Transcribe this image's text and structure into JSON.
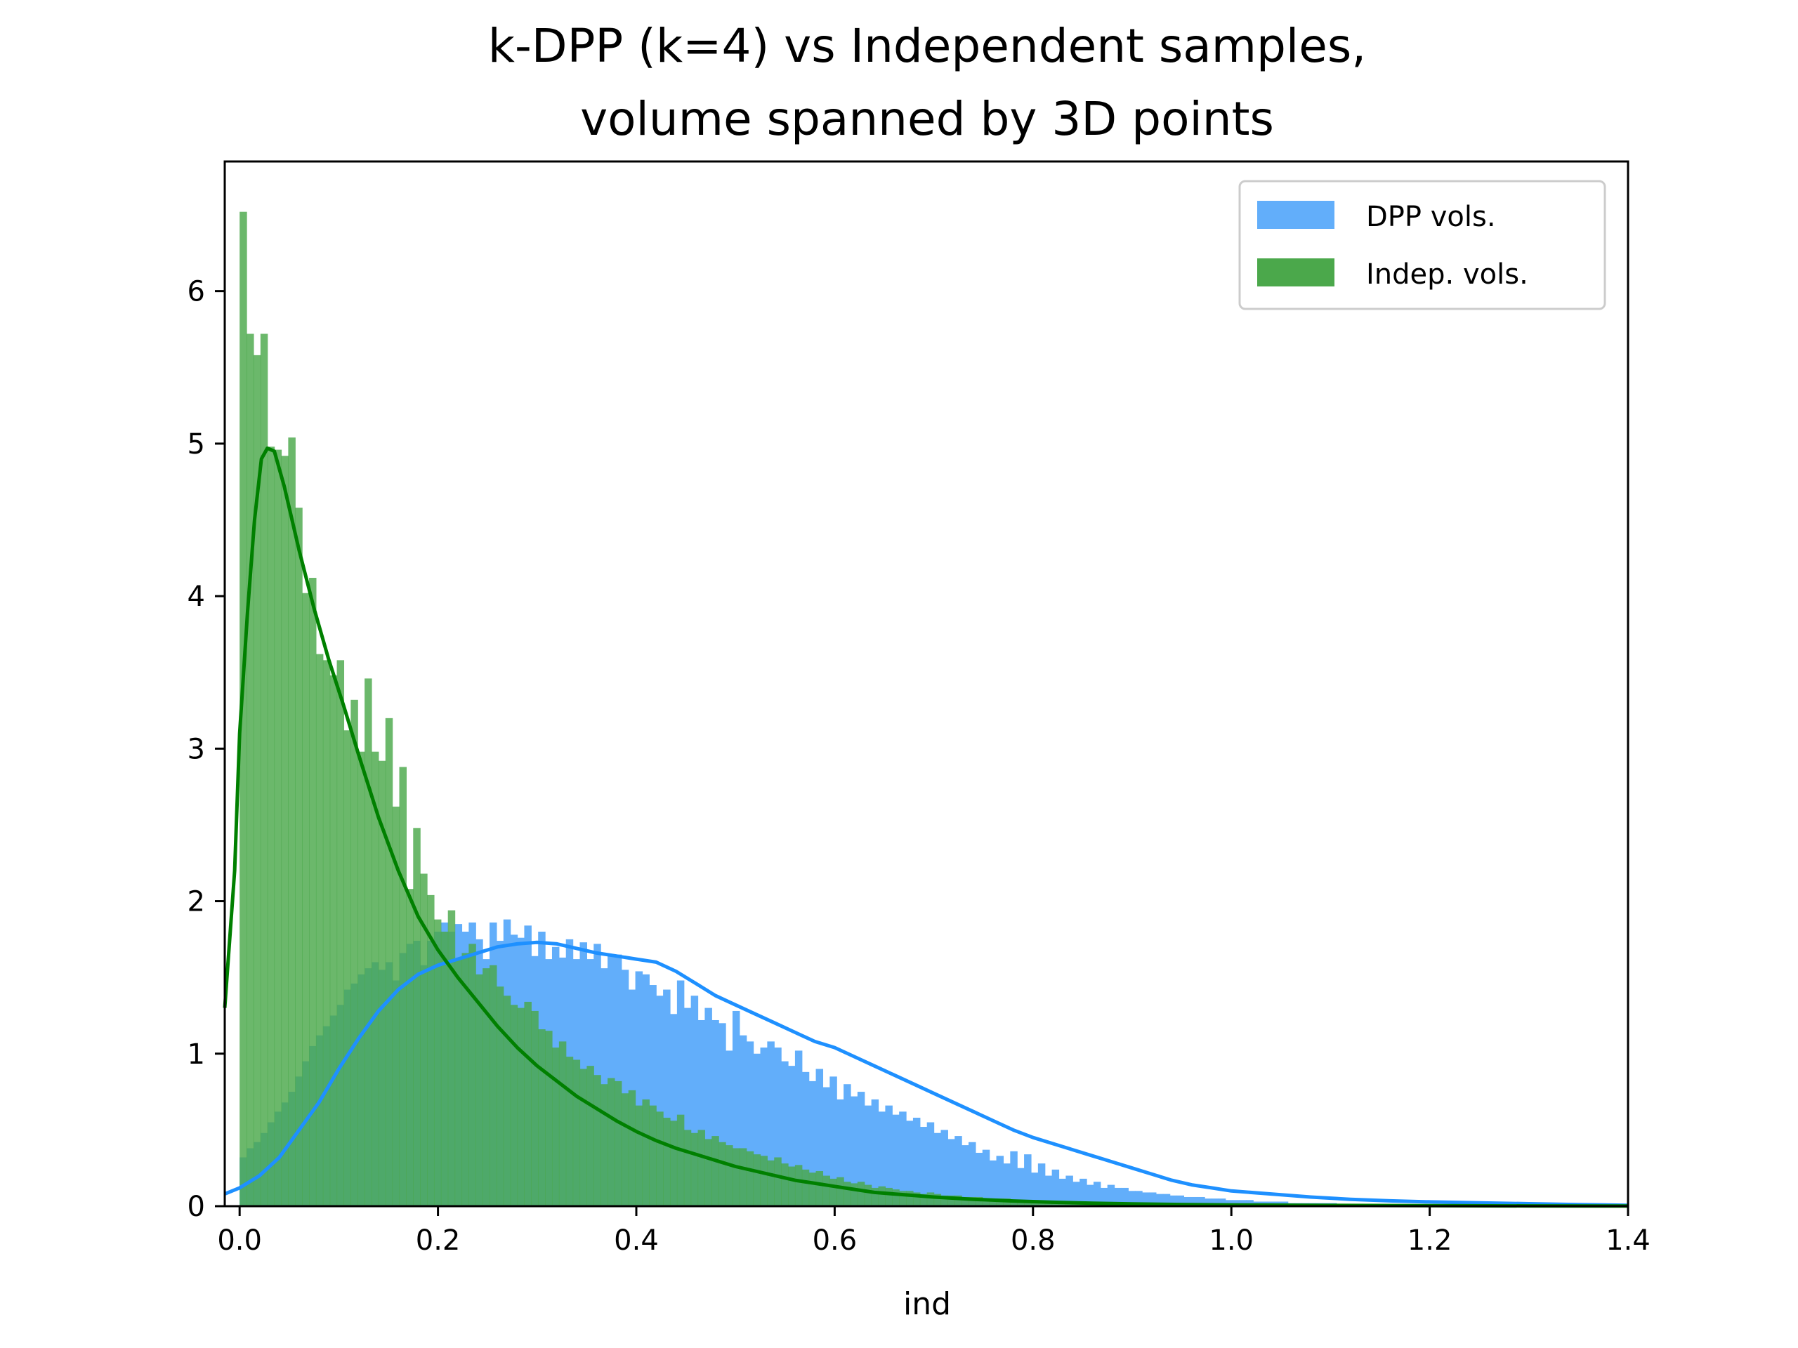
{
  "chart_data": {
    "type": "bar",
    "title_lines": [
      "k-DPP (k=4) vs Independent samples,",
      "volume spanned by 3D points"
    ],
    "xlabel": "ind",
    "ylabel": "",
    "xlim": [
      -0.015,
      1.4
    ],
    "ylim": [
      0,
      6.85
    ],
    "x_ticks": [
      {
        "value": 0.0,
        "label": "0.0"
      },
      {
        "value": 0.2,
        "label": "0.2"
      },
      {
        "value": 0.4,
        "label": "0.4"
      },
      {
        "value": 0.6,
        "label": "0.6"
      },
      {
        "value": 0.8,
        "label": "0.8"
      },
      {
        "value": 1.0,
        "label": "1.0"
      },
      {
        "value": 1.2,
        "label": "1.2"
      },
      {
        "value": 1.4,
        "label": "1.4"
      }
    ],
    "y_ticks": [
      {
        "value": 0,
        "label": "0"
      },
      {
        "value": 1,
        "label": "1"
      },
      {
        "value": 2,
        "label": "2"
      },
      {
        "value": 3,
        "label": "3"
      },
      {
        "value": 4,
        "label": "4"
      },
      {
        "value": 5,
        "label": "5"
      },
      {
        "value": 6,
        "label": "6"
      }
    ],
    "grid": false,
    "legend_position": "upper-right",
    "series": [
      {
        "name": "DPP vols.",
        "kind": "histogram",
        "color": "#1e90ff",
        "fill_color": "#62aefa",
        "bin_width": 0.007,
        "bin_start": 0.0,
        "counts": [
          0.32,
          0.38,
          0.42,
          0.48,
          0.55,
          0.62,
          0.68,
          0.75,
          0.85,
          0.95,
          1.05,
          1.12,
          1.18,
          1.25,
          1.32,
          1.42,
          1.46,
          1.52,
          1.56,
          1.6,
          1.55,
          1.6,
          1.48,
          1.66,
          1.72,
          1.74,
          1.58,
          1.74,
          1.8,
          1.86,
          1.8,
          1.85,
          1.8,
          1.86,
          1.75,
          1.62,
          1.86,
          1.74,
          1.88,
          1.78,
          1.76,
          1.84,
          1.64,
          1.8,
          1.62,
          1.7,
          1.63,
          1.75,
          1.62,
          1.73,
          1.62,
          1.72,
          1.56,
          1.64,
          1.65,
          1.55,
          1.42,
          1.54,
          1.52,
          1.45,
          1.38,
          1.42,
          1.26,
          1.48,
          1.3,
          1.38,
          1.22,
          1.3,
          1.22,
          1.2,
          1.02,
          1.28,
          1.12,
          1.08,
          1.0,
          1.04,
          1.08,
          1.04,
          0.95,
          0.92,
          1.02,
          0.88,
          0.82,
          0.9,
          0.78,
          0.85,
          0.7,
          0.8,
          0.72,
          0.75,
          0.66,
          0.7,
          0.62,
          0.66,
          0.6,
          0.62,
          0.56,
          0.58,
          0.52,
          0.55,
          0.48,
          0.5,
          0.44,
          0.46,
          0.4,
          0.42,
          0.35,
          0.37,
          0.3,
          0.33,
          0.28,
          0.36,
          0.25,
          0.34,
          0.22,
          0.28,
          0.2,
          0.24,
          0.18,
          0.2,
          0.16,
          0.18,
          0.14,
          0.16,
          0.12,
          0.14,
          0.12,
          0.12,
          0.1,
          0.1,
          0.09,
          0.09,
          0.08,
          0.08,
          0.07,
          0.07,
          0.06,
          0.06,
          0.06,
          0.05,
          0.05,
          0.05,
          0.04,
          0.04,
          0.04,
          0.04,
          0.03,
          0.03,
          0.03,
          0.03,
          0.03,
          0.02,
          0.02,
          0.02,
          0.02,
          0.02,
          0.02,
          0.02,
          0.01,
          0.01,
          0.01,
          0.01,
          0.01,
          0.01,
          0.01,
          0.01,
          0.01,
          0.01,
          0.01,
          0.01,
          0.01,
          0.01,
          0.01,
          0.01,
          0.01,
          0.01,
          0.01,
          0.01,
          0.01,
          0.01,
          0.01,
          0.01,
          0.01,
          0.01,
          0.01,
          0.01,
          0.01,
          0.01,
          0.01,
          0.01,
          0.01,
          0.01,
          0.01,
          0.01,
          0.01,
          0.01,
          0.01,
          0.01
        ],
        "kde": [
          [
            -0.015,
            0.08
          ],
          [
            0.0,
            0.12
          ],
          [
            0.02,
            0.2
          ],
          [
            0.04,
            0.32
          ],
          [
            0.06,
            0.5
          ],
          [
            0.08,
            0.68
          ],
          [
            0.1,
            0.9
          ],
          [
            0.12,
            1.1
          ],
          [
            0.14,
            1.28
          ],
          [
            0.16,
            1.42
          ],
          [
            0.18,
            1.52
          ],
          [
            0.2,
            1.58
          ],
          [
            0.22,
            1.62
          ],
          [
            0.24,
            1.66
          ],
          [
            0.26,
            1.7
          ],
          [
            0.28,
            1.72
          ],
          [
            0.3,
            1.73
          ],
          [
            0.32,
            1.72
          ],
          [
            0.34,
            1.69
          ],
          [
            0.36,
            1.66
          ],
          [
            0.38,
            1.64
          ],
          [
            0.4,
            1.62
          ],
          [
            0.42,
            1.6
          ],
          [
            0.44,
            1.54
          ],
          [
            0.46,
            1.46
          ],
          [
            0.48,
            1.38
          ],
          [
            0.5,
            1.32
          ],
          [
            0.52,
            1.26
          ],
          [
            0.54,
            1.2
          ],
          [
            0.56,
            1.14
          ],
          [
            0.58,
            1.08
          ],
          [
            0.6,
            1.04
          ],
          [
            0.62,
            0.98
          ],
          [
            0.64,
            0.92
          ],
          [
            0.66,
            0.86
          ],
          [
            0.68,
            0.8
          ],
          [
            0.7,
            0.74
          ],
          [
            0.72,
            0.68
          ],
          [
            0.74,
            0.62
          ],
          [
            0.76,
            0.56
          ],
          [
            0.78,
            0.5
          ],
          [
            0.8,
            0.45
          ],
          [
            0.82,
            0.41
          ],
          [
            0.84,
            0.37
          ],
          [
            0.86,
            0.33
          ],
          [
            0.88,
            0.29
          ],
          [
            0.9,
            0.25
          ],
          [
            0.92,
            0.21
          ],
          [
            0.94,
            0.17
          ],
          [
            0.96,
            0.14
          ],
          [
            0.98,
            0.12
          ],
          [
            1.0,
            0.1
          ],
          [
            1.04,
            0.08
          ],
          [
            1.08,
            0.06
          ],
          [
            1.12,
            0.045
          ],
          [
            1.16,
            0.035
          ],
          [
            1.2,
            0.028
          ],
          [
            1.25,
            0.022
          ],
          [
            1.3,
            0.016
          ],
          [
            1.35,
            0.01
          ],
          [
            1.4,
            0.006
          ]
        ]
      },
      {
        "name": "Indep. vols.",
        "kind": "histogram",
        "color": "#008000",
        "fill_color": "#4ba84b",
        "bin_width": 0.007,
        "bin_start": 0.0,
        "counts": [
          6.52,
          5.72,
          5.58,
          5.72,
          4.98,
          4.96,
          4.92,
          5.04,
          4.58,
          4.02,
          4.12,
          3.62,
          3.58,
          3.48,
          3.58,
          3.12,
          3.32,
          2.98,
          3.46,
          2.98,
          2.92,
          3.2,
          2.62,
          2.88,
          2.08,
          2.48,
          2.18,
          2.04,
          1.88,
          1.8,
          1.94,
          1.62,
          1.66,
          1.72,
          1.52,
          1.56,
          1.58,
          1.44,
          1.38,
          1.32,
          1.3,
          1.34,
          1.28,
          1.16,
          1.15,
          1.04,
          1.08,
          0.98,
          0.96,
          0.9,
          0.92,
          0.86,
          0.8,
          0.84,
          0.82,
          0.74,
          0.76,
          0.66,
          0.7,
          0.66,
          0.62,
          0.58,
          0.56,
          0.6,
          0.5,
          0.48,
          0.5,
          0.44,
          0.46,
          0.42,
          0.4,
          0.38,
          0.38,
          0.36,
          0.34,
          0.33,
          0.3,
          0.32,
          0.28,
          0.26,
          0.27,
          0.24,
          0.22,
          0.23,
          0.2,
          0.18,
          0.19,
          0.16,
          0.15,
          0.16,
          0.14,
          0.12,
          0.13,
          0.12,
          0.11,
          0.1,
          0.1,
          0.09,
          0.08,
          0.09,
          0.08,
          0.07,
          0.07,
          0.07,
          0.06,
          0.06,
          0.06,
          0.05,
          0.05,
          0.05,
          0.05,
          0.04,
          0.04,
          0.04,
          0.04,
          0.03,
          0.03,
          0.03,
          0.03,
          0.03,
          0.03,
          0.02,
          0.02,
          0.02,
          0.02,
          0.02,
          0.02,
          0.02,
          0.02,
          0.02,
          0.02,
          0.02,
          0.02,
          0.01,
          0.01,
          0.01,
          0.01,
          0.01,
          0.01,
          0.01,
          0.01,
          0.01,
          0.01,
          0.01,
          0.01,
          0.01,
          0.01,
          0.01,
          0.01,
          0.01,
          0.01,
          0.01,
          0.01,
          0.01,
          0.01,
          0.01,
          0.01,
          0.01,
          0.01,
          0.01,
          0.01,
          0.01,
          0.01,
          0.01,
          0.01,
          0.01,
          0.01,
          0.01,
          0.01,
          0.01,
          0.01,
          0.01,
          0.01,
          0.01,
          0.01,
          0.01,
          0.01,
          0.01,
          0.01,
          0.01,
          0.01,
          0.01,
          0.01,
          0.01,
          0.01,
          0.01
        ],
        "kde": [
          [
            -0.015,
            1.3
          ],
          [
            -0.005,
            2.2
          ],
          [
            0.0,
            3.1
          ],
          [
            0.008,
            3.9
          ],
          [
            0.015,
            4.5
          ],
          [
            0.022,
            4.9
          ],
          [
            0.028,
            4.97
          ],
          [
            0.035,
            4.95
          ],
          [
            0.045,
            4.72
          ],
          [
            0.06,
            4.3
          ],
          [
            0.075,
            3.92
          ],
          [
            0.09,
            3.58
          ],
          [
            0.105,
            3.28
          ],
          [
            0.12,
            2.96
          ],
          [
            0.14,
            2.55
          ],
          [
            0.16,
            2.2
          ],
          [
            0.18,
            1.9
          ],
          [
            0.2,
            1.68
          ],
          [
            0.22,
            1.5
          ],
          [
            0.24,
            1.34
          ],
          [
            0.26,
            1.18
          ],
          [
            0.28,
            1.04
          ],
          [
            0.3,
            0.92
          ],
          [
            0.32,
            0.82
          ],
          [
            0.34,
            0.72
          ],
          [
            0.36,
            0.64
          ],
          [
            0.38,
            0.56
          ],
          [
            0.4,
            0.49
          ],
          [
            0.42,
            0.43
          ],
          [
            0.44,
            0.38
          ],
          [
            0.46,
            0.34
          ],
          [
            0.48,
            0.3
          ],
          [
            0.5,
            0.26
          ],
          [
            0.52,
            0.23
          ],
          [
            0.54,
            0.2
          ],
          [
            0.56,
            0.17
          ],
          [
            0.58,
            0.15
          ],
          [
            0.6,
            0.13
          ],
          [
            0.62,
            0.11
          ],
          [
            0.64,
            0.09
          ],
          [
            0.66,
            0.08
          ],
          [
            0.68,
            0.07
          ],
          [
            0.7,
            0.06
          ],
          [
            0.74,
            0.045
          ],
          [
            0.78,
            0.034
          ],
          [
            0.82,
            0.026
          ],
          [
            0.86,
            0.02
          ],
          [
            0.9,
            0.015
          ],
          [
            0.95,
            0.011
          ],
          [
            1.0,
            0.008
          ],
          [
            1.1,
            0.005
          ],
          [
            1.2,
            0.003
          ],
          [
            1.3,
            0.002
          ],
          [
            1.4,
            0.001
          ]
        ]
      }
    ]
  }
}
